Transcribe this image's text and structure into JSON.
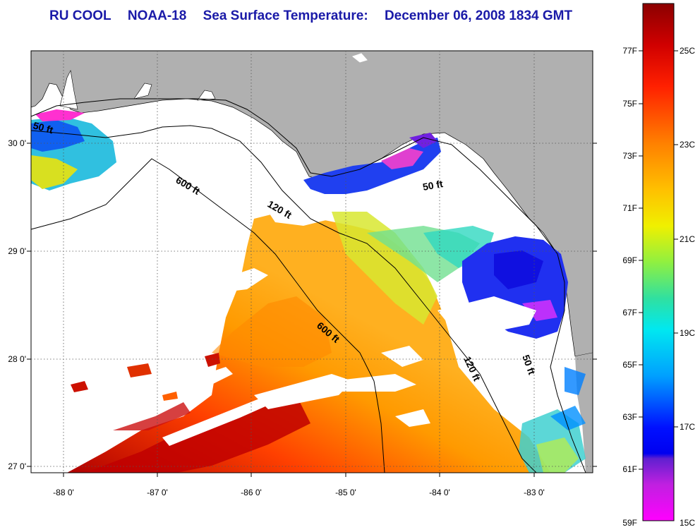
{
  "title": {
    "org": "RU COOL",
    "sensor": "NOAA-18",
    "product": "Sea Surface Temperature:",
    "datetime": "December 06, 2008 1834 GMT"
  },
  "map": {
    "lon_ticks": [
      "-88 0'",
      "-87 0'",
      "-86 0'",
      "-85 0'",
      "-84 0'",
      "-83 0'"
    ],
    "lat_ticks": [
      "30 0'",
      "29 0'",
      "28 0'",
      "27 0'"
    ],
    "grid": "dotted",
    "land_color": "#b0b0b0",
    "contour_labels": [
      "50 ft",
      "600 ft",
      "120 ft",
      "50 ft",
      "600 ft",
      "120 ft",
      "50 ft"
    ]
  },
  "colorbar": {
    "fahrenheit_labels": [
      "77F",
      "75F",
      "73F",
      "71F",
      "69F",
      "67F",
      "65F",
      "63F",
      "61F",
      "59F"
    ],
    "celsius_labels": [
      "25C",
      "23C",
      "21C",
      "19C",
      "17C",
      "15C"
    ],
    "colors": [
      "#8b0000",
      "#ff0000",
      "#ff8000",
      "#ffd000",
      "#c8f000",
      "#40e080",
      "#00e0e0",
      "#00a0ff",
      "#0000ff",
      "#8000c0",
      "#ff00ff"
    ]
  }
}
